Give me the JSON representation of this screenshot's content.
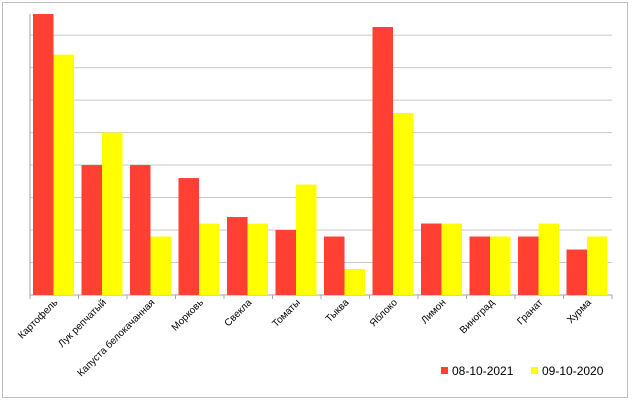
{
  "chart_data": {
    "type": "bar",
    "categories": [
      "Картофель",
      "Лук репчатый",
      "Капуста белокачанная",
      "Морковь",
      "Свекла",
      "Томаты",
      "Тыква",
      "Яблоко",
      "Лимон",
      "Виноград",
      "Гранат",
      "Хурма"
    ],
    "series": [
      {
        "name": "08-10-2021",
        "color": "#ff4033",
        "values": [
          17.3,
          8.0,
          8.0,
          7.2,
          4.8,
          4.0,
          3.6,
          16.5,
          4.4,
          3.6,
          3.6,
          2.8
        ]
      },
      {
        "name": "09-10-2020",
        "color": "#ffff00",
        "values": [
          14.8,
          10.0,
          3.6,
          4.4,
          4.4,
          6.8,
          1.6,
          11.2,
          4.4,
          3.6,
          4.4,
          3.6
        ]
      }
    ],
    "ylim": [
      0,
      17.3
    ],
    "gridline_step": 2,
    "grid": true,
    "y_tick_labels_shown": false,
    "legend_position": "bottom-right",
    "title": "",
    "xlabel": "",
    "ylabel": ""
  }
}
